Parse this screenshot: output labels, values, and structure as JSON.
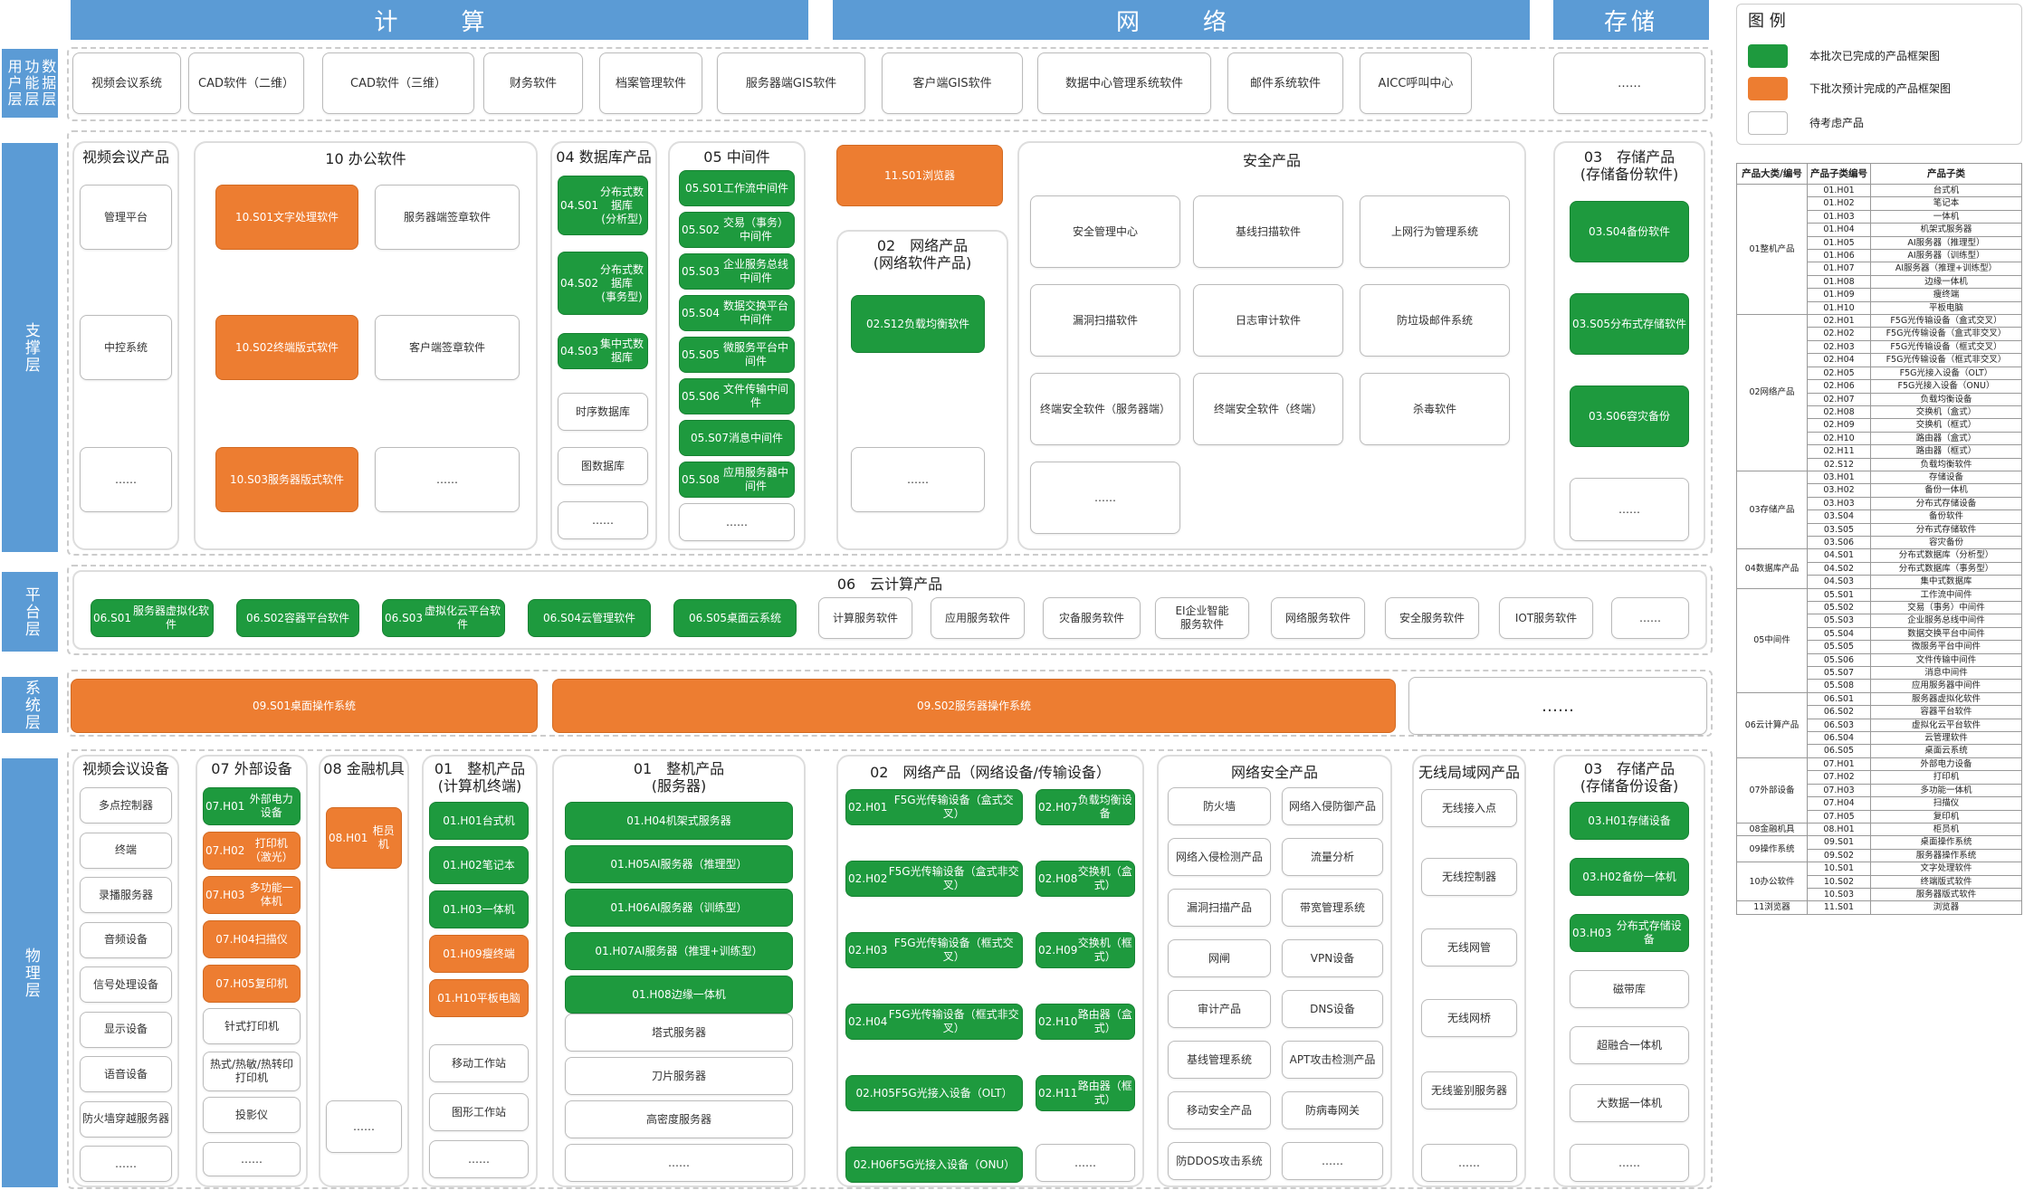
{
  "headers": {
    "compute": "计　算",
    "network": "网　络",
    "storage": "存储"
  },
  "layers": {
    "user": "用户层",
    "func": "功能层",
    "data": "数据层",
    "support": "支撑层",
    "platform": "平台层",
    "system": "系统层",
    "physical": "物理层"
  },
  "legend": {
    "title": "图 例",
    "items": [
      {
        "text": "本批次已完成的产品框架图",
        "color": "#1e9a3e"
      },
      {
        "text": "下批次预计完成的产品框架图",
        "color": "#ed7d31"
      },
      {
        "text": "待考虑产品",
        "color": "#ffffff"
      }
    ]
  },
  "apps": [
    "视频会议系统",
    "CAD软件（二维）",
    "CAD软件（三维）",
    "财务软件",
    "档案管理软件",
    "服务器端GIS软件",
    "客户端GIS软件",
    "数据中心管理系统软件",
    "邮件系统软件",
    "AICC呼叫中心",
    "……"
  ],
  "support": {
    "video": {
      "title": "视频会议产品",
      "items": [
        "管理平台",
        "中控系统",
        "……"
      ]
    },
    "office": {
      "title": "10 办公软件",
      "green_or_orange": [
        {
          "code": "10.S01",
          "name": "文字处理软件"
        },
        {
          "code": "10.S02",
          "name": "终端版式软件"
        },
        {
          "code": "10.S03",
          "name": "服务器版式软件"
        }
      ],
      "white": [
        "服务器端签章软件",
        "客户端签章软件",
        "……"
      ]
    },
    "db": {
      "title": "04 数据库产品",
      "items": [
        {
          "code": "04.S01",
          "name": "分布式数据库\n(分析型)"
        },
        {
          "code": "04.S02",
          "name": "分布式数据库\n(事务型)"
        },
        {
          "code": "04.S03",
          "name": "集中式数据库"
        }
      ],
      "white": [
        "时序数据库",
        "图数据库",
        "……"
      ]
    },
    "mid": {
      "title": "05 中间件",
      "items": [
        {
          "code": "05.S01",
          "name": "工作流中间件"
        },
        {
          "code": "05.S02",
          "name": "交易（事务）中间件"
        },
        {
          "code": "05.S03",
          "name": "企业服务总线中间件"
        },
        {
          "code": "05.S04",
          "name": "数据交换平台中间件"
        },
        {
          "code": "05.S05",
          "name": "微服务平台中间件"
        },
        {
          "code": "05.S06",
          "name": "文件传输中间件"
        },
        {
          "code": "05.S07",
          "name": "消息中间件"
        },
        {
          "code": "05.S08",
          "name": "应用服务器中间件"
        }
      ],
      "white": "……"
    },
    "browser": {
      "code": "11.S01",
      "name": "浏览器"
    },
    "netsw": {
      "title": "02　网络产品\n(网络软件产品)",
      "item": {
        "code": "02.S12",
        "name": "负载均衡软件"
      },
      "white": "……"
    },
    "security": {
      "title": "安全产品",
      "items": [
        "安全管理中心",
        "基线扫描软件",
        "上网行为管理系统",
        "漏洞扫描软件",
        "日志审计软件",
        "防垃圾邮件系统",
        "终端安全软件（服务器端）",
        "终端安全软件（终端）",
        "杀毒软件",
        "……"
      ]
    },
    "storage": {
      "title": "03　存储产品\n(存储备份软件)",
      "items": [
        {
          "code": "03.S04",
          "name": "备份软件"
        },
        {
          "code": "03.S05",
          "name": "分布式存储软件"
        },
        {
          "code": "03.S06",
          "name": "容灾备份"
        }
      ],
      "white": "……"
    }
  },
  "cloud": {
    "title": "06　云计算产品",
    "items": [
      {
        "code": "06.S01",
        "name": "服务器虚拟化软件"
      },
      {
        "code": "06.S02",
        "name": "容器平台软件"
      },
      {
        "code": "06.S03",
        "name": "虚拟化云平台软件"
      },
      {
        "code": "06.S04",
        "name": "云管理软件"
      },
      {
        "code": "06.S05",
        "name": "桌面云系统"
      }
    ],
    "white": [
      "计算服务软件",
      "应用服务软件",
      "灾备服务软件",
      "EI企业智能\n服务软件",
      "网络服务软件",
      "安全服务软件",
      "IOT服务软件",
      "……"
    ]
  },
  "os": [
    {
      "code": "09.S01",
      "name": "桌面操作系统"
    },
    {
      "code": "09.S02",
      "name": "服务器操作系统"
    },
    {
      "name": "……"
    }
  ],
  "physical": {
    "video": {
      "title": "视频会议设备",
      "items": [
        "多点控制器",
        "终端",
        "录播服务器",
        "音频设备",
        "信号处理设备",
        "显示设备",
        "语音设备",
        "防火墙穿越服务器",
        "……"
      ]
    },
    "ext": {
      "title": "07 外部设备",
      "items": [
        {
          "code": "07.H01",
          "name": "外部电力设备"
        },
        {
          "code": "07.H02",
          "name": "打印机（激光）"
        },
        {
          "code": "07.H03",
          "name": "多功能一体机"
        },
        {
          "code": "07.H04",
          "name": "扫描仪"
        },
        {
          "code": "07.H05",
          "name": "复印机"
        }
      ],
      "white": [
        "针式打印机",
        "热式/热敏/热转印\n打印机",
        "投影仪",
        "……"
      ]
    },
    "fin": {
      "title": "08 金融机具",
      "item": {
        "code": "08.H01",
        "name": "柜员机"
      },
      "white": "……"
    },
    "pc": {
      "title": "01　整机产品\n(计算机终端)",
      "items": [
        {
          "code": "01.H01",
          "name": "台式机"
        },
        {
          "code": "01.H02",
          "name": "笔记本"
        },
        {
          "code": "01.H03",
          "name": "一体机"
        },
        {
          "code": "01.H09",
          "name": "瘦终端"
        },
        {
          "code": "01.H10",
          "name": "平板电脑"
        }
      ],
      "white": [
        "移动工作站",
        "图形工作站",
        "……"
      ]
    },
    "server": {
      "title": "01　整机产品\n(服务器)",
      "items": [
        {
          "code": "01.H04",
          "name": "机架式服务器"
        },
        {
          "code": "01.H05",
          "name": "AI服务器（推理型）"
        },
        {
          "code": "01.H06",
          "name": "AI服务器（训练型）"
        },
        {
          "code": "01.H07",
          "name": "AI服务器（推理+训练型）"
        },
        {
          "code": "01.H08",
          "name": "边缘一体机"
        }
      ],
      "white": [
        "塔式服务器",
        "刀片服务器",
        "高密度服务器",
        "……"
      ]
    },
    "net": {
      "title": "02　网络产品（网络设备/传输设备）",
      "left": [
        {
          "code": "02.H01",
          "name": "F5G光传输设备（盒式交叉）"
        },
        {
          "code": "02.H02",
          "name": "F5G光传输设备（盒式非交叉）"
        },
        {
          "code": "02.H03",
          "name": "F5G光传输设备（框式交叉）"
        },
        {
          "code": "02.H04",
          "name": "F5G光传输设备（框式非交叉）"
        },
        {
          "code": "02.H05",
          "name": "F5G光接入设备（OLT）"
        },
        {
          "code": "02.H06",
          "name": "F5G光接入设备（ONU）"
        }
      ],
      "right": [
        {
          "code": "02.H07",
          "name": "负载均衡设备"
        },
        {
          "code": "02.H08",
          "name": "交换机（盒式）"
        },
        {
          "code": "02.H09",
          "name": "交换机（框式）"
        },
        {
          "code": "02.H10",
          "name": "路由器（盒式）"
        },
        {
          "code": "02.H11",
          "name": "路由器（框式）"
        }
      ],
      "white": "……"
    },
    "netsec": {
      "title": "网络安全产品",
      "items": [
        "防火墙",
        "网络入侵防御产品",
        "网络入侵检测产品",
        "流量分析",
        "漏洞扫描产品",
        "带宽管理系统",
        "网闸",
        "VPN设备",
        "审计产品",
        "DNS设备",
        "基线管理系统",
        "APT攻击检测产品",
        "移动安全产品",
        "防病毒网关",
        "防DDOS攻击系统",
        "……"
      ]
    },
    "wlan": {
      "title": "无线局域网产品",
      "items": [
        "无线接入点",
        "无线控制器",
        "无线网管",
        "无线网桥",
        "无线鉴别服务器",
        "……"
      ]
    },
    "storage": {
      "title": "03　存储产品\n(存储备份设备)",
      "items": [
        {
          "code": "03.H01",
          "name": "存储设备"
        },
        {
          "code": "03.H02",
          "name": "备份一体机"
        },
        {
          "code": "03.H03",
          "name": "分布式存储设备"
        }
      ],
      "white": [
        "磁带库",
        "超融合一体机",
        "大数据一体机",
        "……"
      ]
    }
  },
  "table": {
    "headers": [
      "产品大类/编号",
      "产品子类编号",
      "产品子类"
    ],
    "groups": [
      {
        "name": "01整机产品",
        "rows": [
          [
            "01.H01",
            "台式机"
          ],
          [
            "01.H02",
            "笔记本"
          ],
          [
            "01.H03",
            "一体机"
          ],
          [
            "01.H04",
            "机架式服务器"
          ],
          [
            "01.H05",
            "AI服务器（推理型）"
          ],
          [
            "01.H06",
            "AI服务器（训练型）"
          ],
          [
            "01.H07",
            "AI服务器（推理+训练型）"
          ],
          [
            "01.H08",
            "边缘一体机"
          ],
          [
            "01.H09",
            "瘦终端"
          ],
          [
            "01.H10",
            "平板电脑"
          ]
        ]
      },
      {
        "name": "02网络产品",
        "rows": [
          [
            "02.H01",
            "F5G光传输设备（盒式交叉）"
          ],
          [
            "02.H02",
            "F5G光传输设备（盒式非交叉）"
          ],
          [
            "02.H03",
            "F5G光传输设备（框式交叉）"
          ],
          [
            "02.H04",
            "F5G光传输设备（框式非交叉）"
          ],
          [
            "02.H05",
            "F5G光接入设备（OLT）"
          ],
          [
            "02.H06",
            "F5G光接入设备（ONU）"
          ],
          [
            "02.H07",
            "负载均衡设备"
          ],
          [
            "02.H08",
            "交换机（盒式）"
          ],
          [
            "02.H09",
            "交换机（框式）"
          ],
          [
            "02.H10",
            "路由器（盒式）"
          ],
          [
            "02.H11",
            "路由器（框式）"
          ],
          [
            "02.S12",
            "负载均衡软件"
          ]
        ]
      },
      {
        "name": "03存储产品",
        "rows": [
          [
            "03.H01",
            "存储设备"
          ],
          [
            "03.H02",
            "备份一体机"
          ],
          [
            "03.H03",
            "分布式存储设备"
          ],
          [
            "03.S04",
            "备份软件"
          ],
          [
            "03.S05",
            "分布式存储软件"
          ],
          [
            "03.S06",
            "容灾备份"
          ]
        ]
      },
      {
        "name": "04数据库产品",
        "rows": [
          [
            "04.S01",
            "分布式数据库（分析型）"
          ],
          [
            "04.S02",
            "分布式数据库（事务型）"
          ],
          [
            "04.S03",
            "集中式数据库"
          ]
        ]
      },
      {
        "name": "05中间件",
        "rows": [
          [
            "05.S01",
            "工作流中间件"
          ],
          [
            "05.S02",
            "交易（事务）中间件"
          ],
          [
            "05.S03",
            "企业服务总线中间件"
          ],
          [
            "05.S04",
            "数据交换平台中间件"
          ],
          [
            "05.S05",
            "微服务平台中间件"
          ],
          [
            "05.S06",
            "文件传输中间件"
          ],
          [
            "05.S07",
            "消息中间件"
          ],
          [
            "05.S08",
            "应用服务器中间件"
          ]
        ]
      },
      {
        "name": "06云计算产品",
        "rows": [
          [
            "06.S01",
            "服务器虚拟化软件"
          ],
          [
            "06.S02",
            "容器平台软件"
          ],
          [
            "06.S03",
            "虚拟化云平台软件"
          ],
          [
            "06.S04",
            "云管理软件"
          ],
          [
            "06.S05",
            "桌面云系统"
          ]
        ]
      },
      {
        "name": "07外部设备",
        "rows": [
          [
            "07.H01",
            "外部电力设备"
          ],
          [
            "07.H02",
            "打印机"
          ],
          [
            "07.H03",
            "多功能一体机"
          ],
          [
            "07.H04",
            "扫描仪"
          ],
          [
            "07.H05",
            "复印机"
          ]
        ]
      },
      {
        "name": "08金融机具",
        "rows": [
          [
            "08.H01",
            "柜员机"
          ]
        ]
      },
      {
        "name": "09操作系统",
        "rows": [
          [
            "09.S01",
            "桌面操作系统"
          ],
          [
            "09.S02",
            "服务器操作系统"
          ]
        ]
      },
      {
        "name": "10办公软件",
        "rows": [
          [
            "10.S01",
            "文字处理软件"
          ],
          [
            "10.S02",
            "终端版式软件"
          ],
          [
            "10.S03",
            "服务器版式软件"
          ]
        ]
      },
      {
        "name": "11浏览器",
        "rows": [
          [
            "11.S01",
            "浏览器"
          ]
        ]
      }
    ]
  }
}
